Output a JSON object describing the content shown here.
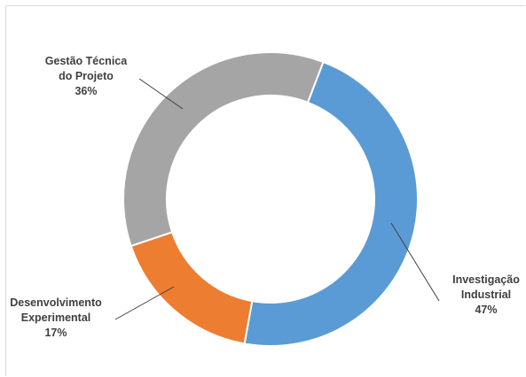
{
  "chart_data": {
    "type": "pie",
    "subtype": "doughnut",
    "title": "",
    "legend": "none",
    "slices": [
      {
        "name_lines": [
          "Investigação",
          "Industrial"
        ],
        "value": 47,
        "label": "47%",
        "color": "#5b9bd5"
      },
      {
        "name_lines": [
          "Desenvolvimento",
          "Experimental"
        ],
        "value": 17,
        "label": "17%",
        "color": "#ed7d31"
      },
      {
        "name_lines": [
          "Gestão Técnica",
          "do Projeto"
        ],
        "value": 36,
        "label": "36%",
        "color": "#a5a5a5"
      }
    ]
  }
}
